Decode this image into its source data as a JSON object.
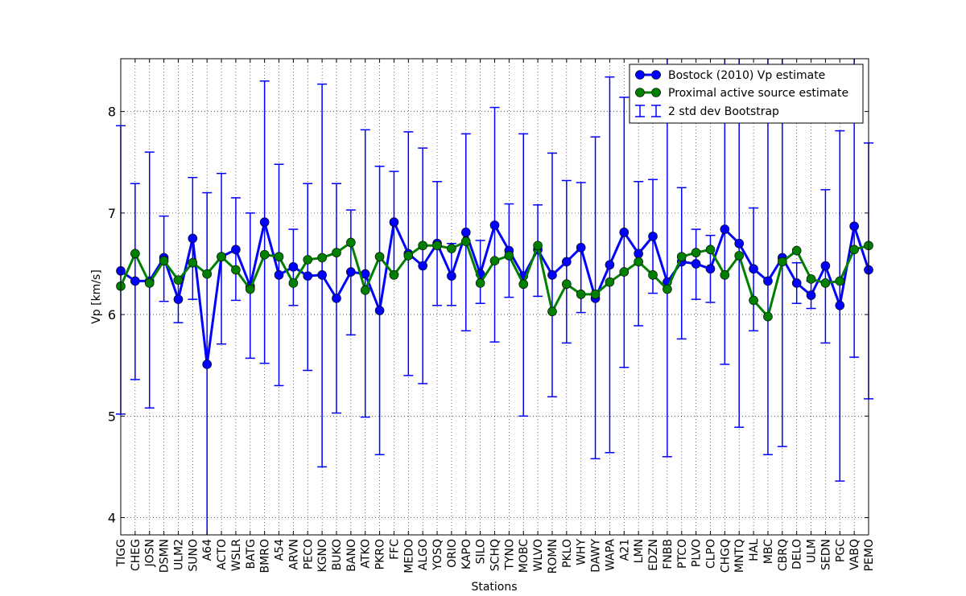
{
  "chart_data": {
    "type": "line",
    "xlabel": "Stations",
    "ylabel": "Vp [km/s]",
    "ylim": [
      3.83,
      8.52
    ],
    "yticks": [
      4,
      5,
      6,
      7,
      8
    ],
    "grid": true,
    "legend_position": "top-right",
    "categories": [
      "TIGG",
      "CHEG",
      "JOSN",
      "DSMN",
      "ULM2",
      "SUNO",
      "A64",
      "ACTO",
      "WSLR",
      "BATG",
      "BMRO",
      "A54",
      "ARVN",
      "PECO",
      "KGNO",
      "BUKO",
      "BANO",
      "ATKO",
      "PKRO",
      "FFC",
      "MEDO",
      "ALGO",
      "YOSQ",
      "ORIO",
      "KAPO",
      "SILO",
      "SCHQ",
      "TYNO",
      "MOBC",
      "WLVO",
      "ROMN",
      "PKLO",
      "WHY",
      "DAWY",
      "WAPA",
      "A21",
      "LMN",
      "EDZN",
      "FNBB",
      "PTCO",
      "PLVO",
      "CLPO",
      "CHGQ",
      "MNTQ",
      "HAL",
      "MBC",
      "CBRQ",
      "DELO",
      "ULM",
      "SEDN",
      "PGC",
      "VABQ",
      "PEMO"
    ],
    "series": [
      {
        "name": "Bostock (2010) Vp estimate",
        "color": "#0000ff",
        "values": [
          6.43,
          6.33,
          6.33,
          6.56,
          6.15,
          6.75,
          5.51,
          6.57,
          6.64,
          6.28,
          6.91,
          6.39,
          6.47,
          6.38,
          6.39,
          6.16,
          6.42,
          6.4,
          6.04,
          6.91,
          6.6,
          6.48,
          6.7,
          6.38,
          6.81,
          6.4,
          6.88,
          6.63,
          6.38,
          6.64,
          6.39,
          6.52,
          6.66,
          6.16,
          6.49,
          6.81,
          6.6,
          6.77,
          6.32,
          6.52,
          6.5,
          6.45,
          6.84,
          6.7,
          6.45,
          6.33,
          6.56,
          6.31,
          6.19,
          6.48,
          6.09,
          6.87,
          6.44
        ],
        "error_low": [
          5.02,
          5.36,
          5.08,
          6.13,
          5.92,
          6.15,
          3.82,
          5.71,
          6.14,
          5.57,
          5.52,
          5.3,
          6.09,
          5.45,
          4.5,
          5.03,
          5.8,
          4.99,
          4.62,
          6.4,
          5.4,
          5.32,
          6.09,
          6.09,
          5.84,
          6.11,
          5.73,
          6.17,
          5.0,
          6.18,
          5.19,
          5.72,
          6.02,
          4.58,
          4.64,
          5.48,
          5.89,
          6.21,
          4.6,
          5.76,
          6.15,
          6.12,
          5.51,
          4.89,
          5.84,
          4.62,
          4.7,
          6.11,
          6.06,
          5.72,
          4.36,
          5.58,
          5.17
        ],
        "error_high": [
          7.86,
          7.29,
          7.6,
          6.97,
          6.35,
          7.35,
          7.2,
          7.39,
          7.15,
          7.0,
          8.3,
          7.48,
          6.84,
          7.29,
          8.27,
          7.29,
          7.03,
          7.82,
          7.46,
          7.41,
          7.8,
          7.64,
          7.31,
          6.7,
          7.78,
          6.73,
          8.04,
          7.09,
          7.78,
          7.08,
          7.59,
          7.32,
          7.3,
          7.75,
          8.34,
          8.14,
          7.31,
          7.33,
          8.52,
          7.25,
          6.84,
          6.78,
          8.52,
          8.52,
          7.05,
          8.52,
          8.52,
          6.51,
          6.33,
          7.23,
          7.81,
          8.52,
          7.69
        ]
      },
      {
        "name": "Proximal active source estimate",
        "color": "#008000",
        "values": [
          6.28,
          6.6,
          6.31,
          6.53,
          6.34,
          6.51,
          6.4,
          6.57,
          6.44,
          6.25,
          6.59,
          6.57,
          6.31,
          6.54,
          6.56,
          6.61,
          6.71,
          6.24,
          6.57,
          6.39,
          6.58,
          6.68,
          6.68,
          6.65,
          6.72,
          6.31,
          6.53,
          6.58,
          6.3,
          6.68,
          6.03,
          6.3,
          6.2,
          6.2,
          6.32,
          6.42,
          6.52,
          6.39,
          6.25,
          6.57,
          6.61,
          6.64,
          6.39,
          6.58,
          6.14,
          5.98,
          6.52,
          6.63,
          6.35,
          6.31,
          6.33,
          6.64,
          6.68
        ]
      }
    ],
    "legend": {
      "bostock": "Bostock (2010) Vp estimate",
      "proximal": "Proximal active source estimate",
      "bootstrap": "2 std dev Bootstrap"
    }
  }
}
